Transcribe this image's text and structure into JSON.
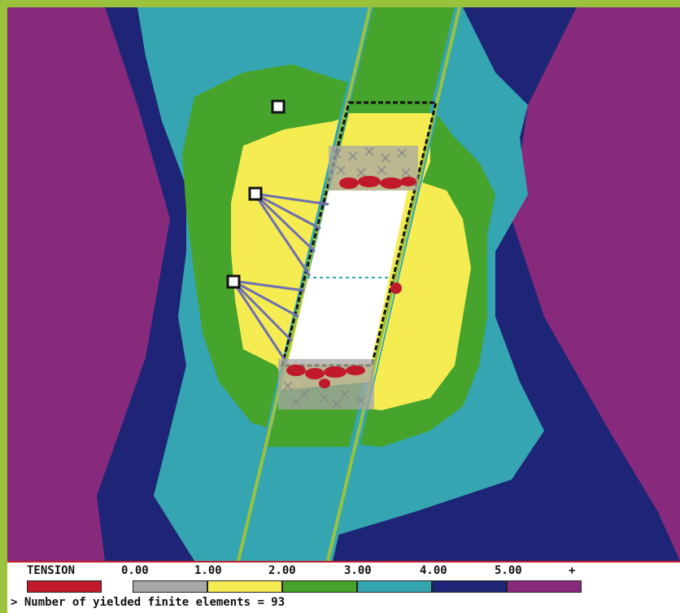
{
  "legend": {
    "title": "TENSION",
    "ticks": [
      "0.00",
      "1.00",
      "2.00",
      "3.00",
      "4.00",
      "5.00",
      "+"
    ],
    "colors": {
      "tension": "#c01a2a",
      "band0": "#a7a7a7",
      "band1": "#f5ec52",
      "band2": "#46a32b",
      "band3": "#35a6b1",
      "band4": "#1f2576",
      "band5": "#882a7c"
    }
  },
  "status": {
    "prompt": ">",
    "message": "Number of yielded finite elements = 93"
  }
}
